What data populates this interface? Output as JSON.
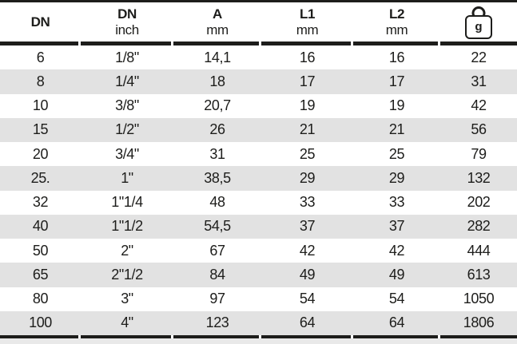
{
  "table": {
    "title": "dimension-weight-table",
    "columns": [
      {
        "label": "DN",
        "sublabel": ""
      },
      {
        "label": "DN",
        "sublabel": "inch"
      },
      {
        "label": "A",
        "sublabel": "mm"
      },
      {
        "label": "L1",
        "sublabel": "mm"
      },
      {
        "label": "L2",
        "sublabel": "mm"
      },
      {
        "label": "g",
        "sublabel": "",
        "icon": "weight-icon"
      }
    ],
    "rows": [
      [
        "6",
        "1/8\"",
        "14,1",
        "16",
        "16",
        "22"
      ],
      [
        "8",
        "1/4\"",
        "18",
        "17",
        "17",
        "31"
      ],
      [
        "10",
        "3/8\"",
        "20,7",
        "19",
        "19",
        "42"
      ],
      [
        "15",
        "1/2\"",
        "26",
        "21",
        "21",
        "56"
      ],
      [
        "20",
        "3/4\"",
        "31",
        "25",
        "25",
        "79"
      ],
      [
        "25.",
        "1\"",
        "38,5",
        "29",
        "29",
        "132"
      ],
      [
        "32",
        "1\"1/4",
        "48",
        "33",
        "33",
        "202"
      ],
      [
        "40",
        "1\"1/2",
        "54,5",
        "37",
        "37",
        "282"
      ],
      [
        "50",
        "2\"",
        "67",
        "42",
        "42",
        "444"
      ],
      [
        "65",
        "2\"1/2",
        "84",
        "49",
        "49",
        "613"
      ],
      [
        "80",
        "3\"",
        "97",
        "54",
        "54",
        "1050"
      ],
      [
        "100",
        "4\"",
        "123",
        "64",
        "64",
        "1806"
      ]
    ]
  },
  "colors": {
    "ink": "#1d1d1b",
    "rule": "#1d1d1b",
    "stripe": "#e2e2e2",
    "footer_strip": "#e9e9e9"
  }
}
